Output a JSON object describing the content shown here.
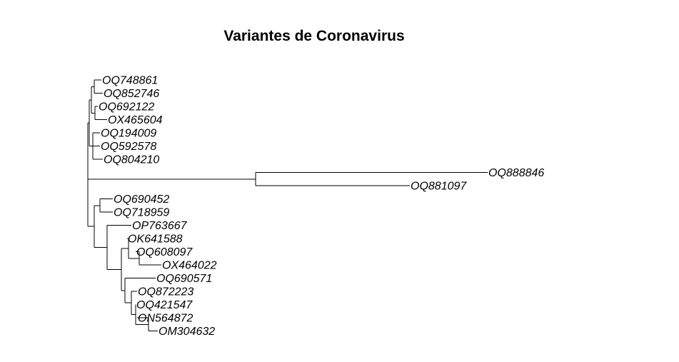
{
  "title": "Variantes de Coronavirus",
  "tree": {
    "children": [
      {
        "children": [
          {
            "children": [
              {
                "children": [
                  {
                    "label": "OQ748861"
                  },
                  {
                    "label": "OQ852746"
                  }
                ]
              },
              {
                "children": [
                  {
                    "label": "OQ692122"
                  },
                  {
                    "label": "OX465604"
                  }
                ]
              }
            ]
          },
          {
            "children": [
              {
                "label": "OQ194009"
              },
              {
                "label": "OQ592578"
              },
              {
                "label": "OQ804210"
              }
            ]
          }
        ]
      },
      {
        "children": [
          {
            "label": "OQ888846"
          },
          {
            "label": "OQ881097"
          }
        ]
      },
      {
        "children": [
          {
            "children": [
              {
                "label": "OQ690452"
              },
              {
                "label": "OQ718959"
              }
            ]
          },
          {
            "children": [
              {
                "label": "OP763667"
              },
              {
                "children": [
                  {
                    "children": [
                      {
                        "label": "OK641588"
                      },
                      {
                        "children": [
                          {
                            "label": "OQ608097"
                          },
                          {
                            "label": "OX464022"
                          }
                        ]
                      }
                    ]
                  },
                  {
                    "children": [
                      {
                        "label": "OQ690571"
                      },
                      {
                        "children": [
                          {
                            "label": "OQ872223"
                          },
                          {
                            "children": [
                              {
                                "label": "OQ421547"
                              },
                              {
                                "children": [
                                  {
                                    "label": "ON564872"
                                  },
                                  {
                                    "label": "OM304632"
                                  }
                                ]
                              }
                            ]
                          }
                        ]
                      }
                    ]
                  }
                ]
              }
            ]
          }
        ]
      }
    ]
  }
}
